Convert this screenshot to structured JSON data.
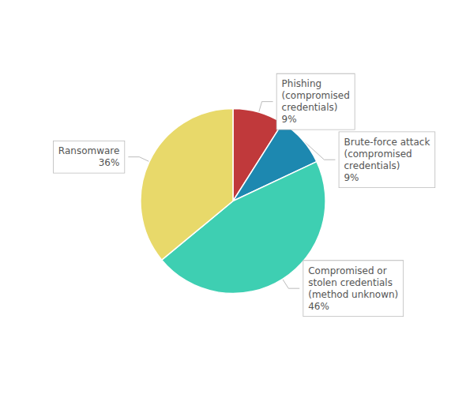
{
  "chart_data": {
    "type": "pie",
    "categories": [
      "Phishing\n(compromised\ncredentials)",
      "Brute-force attack\n(compromised\ncredentials)",
      "Compromised or\nstolen credentials\n(method unknown)",
      "Ransomware"
    ],
    "values": [
      9,
      9,
      46,
      36
    ],
    "value_labels": [
      "9%",
      "9%",
      "46%",
      "36%"
    ],
    "colors": [
      "#c0393b",
      "#1d88b0",
      "#3ecfb2",
      "#e8d96a"
    ],
    "data_labels": true,
    "legend": false
  }
}
